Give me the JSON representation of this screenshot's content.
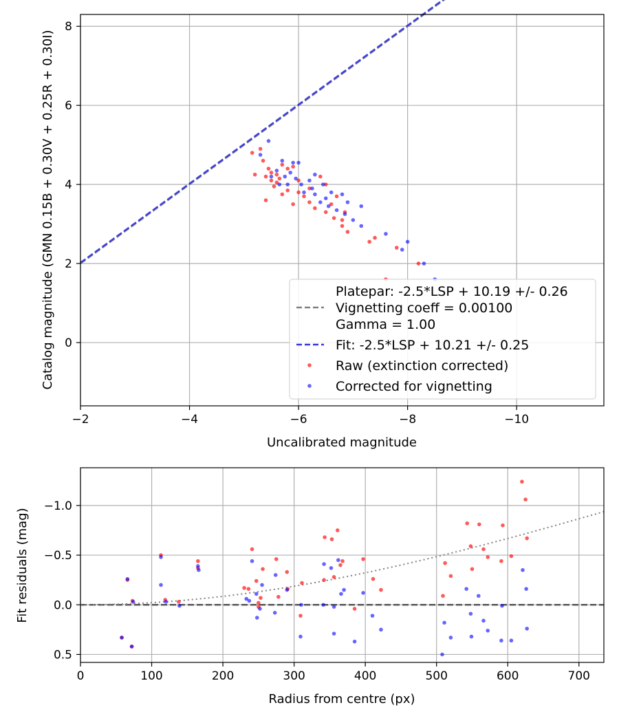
{
  "chart_data": [
    {
      "type": "scatter",
      "name": "photometry-fit",
      "xlabel": "Uncalibrated magnitude",
      "ylabel": "Catalog magnitude (GMN 0.15B + 0.30V + 0.25R + 0.30I)",
      "xlim": [
        -2.0,
        -11.6
      ],
      "ylim": [
        8.3,
        -1.6
      ],
      "x_ticks": [
        -2,
        -4,
        -6,
        -8,
        -10
      ],
      "x_tick_labels": [
        "−2",
        "−4",
        "−6",
        "−8",
        "−10"
      ],
      "y_ticks": [
        0,
        2,
        4,
        6,
        8
      ],
      "y_tick_labels": [
        "0",
        "2",
        "4",
        "6",
        "8"
      ],
      "grid": true,
      "legend_position": "bottom-right",
      "legend": {
        "platepar": "Platepar: -2.5*LSP + 10.19 +/- 0.26",
        "vignetting": "Vignetting coeff = 0.00100",
        "gamma": "Gamma = 1.00",
        "fit": "Fit: -2.5*LSP + 10.21 +/- 0.25",
        "raw": "Raw (extinction corrected)",
        "corrected": "Corrected for vignetting"
      },
      "lines": [
        {
          "name": "platepar",
          "intercept": 10.19,
          "color": "#808080",
          "style": "dashed"
        },
        {
          "name": "fit",
          "intercept": 10.21,
          "color": "#3333dd",
          "style": "dashed"
        }
      ],
      "series": [
        {
          "name": "Raw (extinction corrected)",
          "color": "#ff0000",
          "points": [
            [
              -7.6,
              1.6
            ],
            [
              -8.2,
              2.0
            ],
            [
              -7.8,
              2.4
            ],
            [
              -7.3,
              2.55
            ],
            [
              -7.4,
              2.65
            ],
            [
              -6.9,
              2.8
            ],
            [
              -6.8,
              2.95
            ],
            [
              -6.8,
              3.1
            ],
            [
              -6.65,
              3.15
            ],
            [
              -6.85,
              3.3
            ],
            [
              -6.5,
              3.3
            ],
            [
              -6.6,
              3.5
            ],
            [
              -6.3,
              3.4
            ],
            [
              -6.2,
              3.55
            ],
            [
              -5.9,
              3.5
            ],
            [
              -5.4,
              3.6
            ],
            [
              -6.1,
              3.7
            ],
            [
              -5.7,
              3.75
            ],
            [
              -5.8,
              3.85
            ],
            [
              -6.0,
              3.8
            ],
            [
              -6.2,
              3.9
            ],
            [
              -5.55,
              3.95
            ],
            [
              -5.6,
              4.05
            ],
            [
              -5.5,
              4.1
            ],
            [
              -5.65,
              4.15
            ],
            [
              -5.4,
              4.2
            ],
            [
              -5.2,
              4.25
            ],
            [
              -5.5,
              4.3
            ],
            [
              -5.45,
              4.4
            ],
            [
              -5.8,
              4.4
            ],
            [
              -5.7,
              4.5
            ],
            [
              -5.9,
              4.45
            ],
            [
              -5.35,
              4.6
            ],
            [
              -5.15,
              4.8
            ],
            [
              -5.3,
              4.9
            ],
            [
              -6.4,
              4.2
            ],
            [
              -6.5,
              4.0
            ],
            [
              -6.7,
              3.7
            ],
            [
              -6.0,
              4.1
            ],
            [
              -5.6,
              4.25
            ]
          ]
        },
        {
          "name": "Corrected for vignetting",
          "color": "#0000ff",
          "points": [
            [
              -8.5,
              1.6
            ],
            [
              -8.3,
              2.0
            ],
            [
              -7.9,
              2.35
            ],
            [
              -8.0,
              2.55
            ],
            [
              -7.6,
              2.75
            ],
            [
              -7.15,
              2.95
            ],
            [
              -7.0,
              3.1
            ],
            [
              -6.85,
              3.25
            ],
            [
              -6.7,
              3.35
            ],
            [
              -6.55,
              3.45
            ],
            [
              -7.15,
              3.45
            ],
            [
              -6.9,
              3.55
            ],
            [
              -6.4,
              3.55
            ],
            [
              -6.5,
              3.65
            ],
            [
              -6.8,
              3.75
            ],
            [
              -6.3,
              3.75
            ],
            [
              -6.1,
              3.8
            ],
            [
              -6.25,
              3.9
            ],
            [
              -6.05,
              4.0
            ],
            [
              -6.45,
              4.0
            ],
            [
              -6.2,
              4.1
            ],
            [
              -5.95,
              4.15
            ],
            [
              -6.3,
              4.25
            ],
            [
              -5.75,
              4.2
            ],
            [
              -5.85,
              4.3
            ],
            [
              -5.6,
              4.35
            ],
            [
              -6.0,
              4.55
            ],
            [
              -5.9,
              4.55
            ],
            [
              -5.7,
              4.6
            ],
            [
              -5.3,
              4.75
            ],
            [
              -5.45,
              5.1
            ],
            [
              -5.5,
              4.2
            ],
            [
              -5.65,
              4.0
            ],
            [
              -6.6,
              3.8
            ],
            [
              -5.8,
              4.0
            ]
          ]
        }
      ]
    },
    {
      "type": "scatter",
      "name": "fit-residuals",
      "xlabel": "Radius from centre (px)",
      "ylabel": "Fit residuals (mag)",
      "xlim": [
        0,
        735
      ],
      "ylim": [
        -1.38,
        0.58
      ],
      "x_ticks": [
        0,
        100,
        200,
        300,
        400,
        500,
        600,
        700
      ],
      "x_tick_labels": [
        "0",
        "100",
        "200",
        "300",
        "400",
        "500",
        "600",
        "700"
      ],
      "y_ticks": [
        0.5,
        0.0,
        -0.5,
        -1.0
      ],
      "y_tick_labels": [
        "0.5",
        "0.0",
        "−0.5",
        "−1.0"
      ],
      "grid": true,
      "zero_line": {
        "y": 0.0,
        "color": "#555555",
        "style": "dashed"
      },
      "vignetting_curve": {
        "coefficient": 0.001,
        "color": "#808080",
        "style": "dotted"
      },
      "series": [
        {
          "name": "Raw (extinction corrected)",
          "color": "#ff0000",
          "points": [
            [
              58,
              0.33
            ],
            [
              72,
              0.42
            ],
            [
              66,
              -0.25
            ],
            [
              73,
              -0.04
            ],
            [
              113,
              -0.5
            ],
            [
              119,
              -0.05
            ],
            [
              138,
              -0.03
            ],
            [
              165,
              -0.44
            ],
            [
              165,
              -0.37
            ],
            [
              230,
              -0.17
            ],
            [
              236,
              -0.16
            ],
            [
              241,
              -0.56
            ],
            [
              247,
              -0.24
            ],
            [
              250,
              -0.02
            ],
            [
              253,
              -0.07
            ],
            [
              256,
              -0.36
            ],
            [
              275,
              -0.46
            ],
            [
              278,
              -0.08
            ],
            [
              290,
              -0.33
            ],
            [
              291,
              -0.16
            ],
            [
              309,
              0.11
            ],
            [
              311,
              -0.22
            ],
            [
              342,
              -0.25
            ],
            [
              343,
              -0.68
            ],
            [
              353,
              -0.66
            ],
            [
              356,
              -0.28
            ],
            [
              361,
              -0.75
            ],
            [
              365,
              -0.4
            ],
            [
              368,
              -0.44
            ],
            [
              385,
              0.04
            ],
            [
              397,
              -0.46
            ],
            [
              411,
              -0.26
            ],
            [
              422,
              -0.15
            ],
            [
              509,
              -0.09
            ],
            [
              512,
              -0.42
            ],
            [
              520,
              -0.29
            ],
            [
              543,
              -0.82
            ],
            [
              548,
              -0.59
            ],
            [
              550,
              -0.36
            ],
            [
              560,
              -0.81
            ],
            [
              566,
              -0.56
            ],
            [
              572,
              -0.48
            ],
            [
              591,
              -0.44
            ],
            [
              593,
              -0.8
            ],
            [
              605,
              -0.49
            ],
            [
              620,
              -1.24
            ],
            [
              625,
              -1.06
            ],
            [
              627,
              -0.67
            ],
            [
              250,
              0.02
            ]
          ]
        },
        {
          "name": "Corrected for vignetting",
          "color": "#0000ff",
          "points": [
            [
              58,
              0.33
            ],
            [
              72,
              0.42
            ],
            [
              66,
              -0.26
            ],
            [
              74,
              -0.03
            ],
            [
              113,
              -0.2
            ],
            [
              113,
              -0.48
            ],
            [
              120,
              -0.03
            ],
            [
              139,
              0.01
            ],
            [
              166,
              -0.35
            ],
            [
              165,
              -0.39
            ],
            [
              233,
              -0.06
            ],
            [
              237,
              -0.04
            ],
            [
              241,
              -0.44
            ],
            [
              247,
              -0.11
            ],
            [
              248,
              0.13
            ],
            [
              252,
              0.04
            ],
            [
              255,
              -0.2
            ],
            [
              273,
              0.08
            ],
            [
              274,
              -0.3
            ],
            [
              290,
              -0.15
            ],
            [
              309,
              0.32
            ],
            [
              310,
              0.0
            ],
            [
              341,
              0.0
            ],
            [
              342,
              -0.41
            ],
            [
              352,
              -0.37
            ],
            [
              356,
              0.29
            ],
            [
              356,
              0.02
            ],
            [
              362,
              -0.45
            ],
            [
              366,
              -0.11
            ],
            [
              370,
              -0.15
            ],
            [
              385,
              0.37
            ],
            [
              397,
              -0.12
            ],
            [
              410,
              0.11
            ],
            [
              422,
              0.25
            ],
            [
              508,
              0.5
            ],
            [
              511,
              0.18
            ],
            [
              520,
              0.33
            ],
            [
              542,
              -0.16
            ],
            [
              548,
              0.09
            ],
            [
              549,
              0.32
            ],
            [
              559,
              -0.09
            ],
            [
              566,
              0.16
            ],
            [
              572,
              0.26
            ],
            [
              591,
              0.36
            ],
            [
              592,
              0.01
            ],
            [
              605,
              0.36
            ],
            [
              621,
              -0.35
            ],
            [
              626,
              -0.16
            ],
            [
              627,
              0.24
            ]
          ]
        }
      ]
    }
  ]
}
